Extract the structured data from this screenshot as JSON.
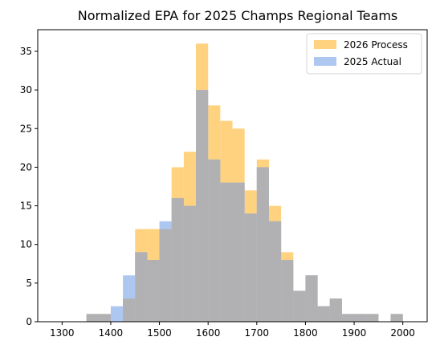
{
  "chart_data": {
    "type": "histogram",
    "title": "Normalized EPA for 2025 Champs Regional Teams",
    "xlabel": "",
    "ylabel": "",
    "xlim": [
      1250,
      2050
    ],
    "ylim": [
      0,
      37.8
    ],
    "bin_width": 25,
    "x_ticks": [
      1300,
      1400,
      1500,
      1600,
      1700,
      1800,
      1900,
      2000
    ],
    "y_ticks": [
      0,
      5,
      10,
      15,
      20,
      25,
      30,
      35
    ],
    "grid": false,
    "legend_position": "top-right",
    "overlap_color": "#B1B1B3",
    "series": [
      {
        "name": "2026 Process",
        "color": "#FFD27F",
        "bins": [
          {
            "x0": 1350,
            "x1": 1375,
            "count": 1
          },
          {
            "x0": 1375,
            "x1": 1400,
            "count": 1
          },
          {
            "x0": 1425,
            "x1": 1450,
            "count": 3
          },
          {
            "x0": 1450,
            "x1": 1475,
            "count": 12
          },
          {
            "x0": 1475,
            "x1": 1500,
            "count": 12
          },
          {
            "x0": 1500,
            "x1": 1525,
            "count": 12
          },
          {
            "x0": 1525,
            "x1": 1550,
            "count": 20
          },
          {
            "x0": 1550,
            "x1": 1575,
            "count": 22
          },
          {
            "x0": 1575,
            "x1": 1600,
            "count": 36
          },
          {
            "x0": 1600,
            "x1": 1625,
            "count": 28
          },
          {
            "x0": 1625,
            "x1": 1650,
            "count": 26
          },
          {
            "x0": 1650,
            "x1": 1675,
            "count": 25
          },
          {
            "x0": 1675,
            "x1": 1700,
            "count": 17
          },
          {
            "x0": 1700,
            "x1": 1725,
            "count": 21
          },
          {
            "x0": 1725,
            "x1": 1750,
            "count": 15
          },
          {
            "x0": 1750,
            "x1": 1775,
            "count": 9
          },
          {
            "x0": 1775,
            "x1": 1800,
            "count": 4
          },
          {
            "x0": 1800,
            "x1": 1825,
            "count": 6
          },
          {
            "x0": 1825,
            "x1": 1850,
            "count": 2
          },
          {
            "x0": 1850,
            "x1": 1875,
            "count": 3
          },
          {
            "x0": 1875,
            "x1": 1900,
            "count": 1
          },
          {
            "x0": 1900,
            "x1": 1925,
            "count": 1
          },
          {
            "x0": 1925,
            "x1": 1950,
            "count": 1
          },
          {
            "x0": 1975,
            "x1": 2000,
            "count": 1
          }
        ]
      },
      {
        "name": "2025 Actual",
        "color": "#AEC7F1",
        "bins": [
          {
            "x0": 1350,
            "x1": 1375,
            "count": 1
          },
          {
            "x0": 1375,
            "x1": 1400,
            "count": 1
          },
          {
            "x0": 1400,
            "x1": 1425,
            "count": 2
          },
          {
            "x0": 1425,
            "x1": 1450,
            "count": 6
          },
          {
            "x0": 1450,
            "x1": 1475,
            "count": 9
          },
          {
            "x0": 1475,
            "x1": 1500,
            "count": 8
          },
          {
            "x0": 1500,
            "x1": 1525,
            "count": 13
          },
          {
            "x0": 1525,
            "x1": 1550,
            "count": 16
          },
          {
            "x0": 1550,
            "x1": 1575,
            "count": 15
          },
          {
            "x0": 1575,
            "x1": 1600,
            "count": 30
          },
          {
            "x0": 1600,
            "x1": 1625,
            "count": 21
          },
          {
            "x0": 1625,
            "x1": 1650,
            "count": 18
          },
          {
            "x0": 1650,
            "x1": 1675,
            "count": 18
          },
          {
            "x0": 1675,
            "x1": 1700,
            "count": 14
          },
          {
            "x0": 1700,
            "x1": 1725,
            "count": 20
          },
          {
            "x0": 1725,
            "x1": 1750,
            "count": 13
          },
          {
            "x0": 1750,
            "x1": 1775,
            "count": 8
          },
          {
            "x0": 1775,
            "x1": 1800,
            "count": 4
          },
          {
            "x0": 1800,
            "x1": 1825,
            "count": 6
          },
          {
            "x0": 1825,
            "x1": 1850,
            "count": 2
          },
          {
            "x0": 1850,
            "x1": 1875,
            "count": 3
          },
          {
            "x0": 1875,
            "x1": 1900,
            "count": 1
          },
          {
            "x0": 1900,
            "x1": 1925,
            "count": 1
          },
          {
            "x0": 1925,
            "x1": 1950,
            "count": 1
          },
          {
            "x0": 1975,
            "x1": 2000,
            "count": 1
          }
        ]
      }
    ]
  }
}
